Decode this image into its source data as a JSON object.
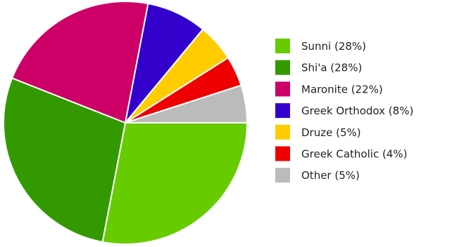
{
  "chart_data": {
    "type": "pie",
    "title": "",
    "slices": [
      {
        "label": "Sunni",
        "value": 28,
        "legend": "Sunni (28%)",
        "color": "#66cc00"
      },
      {
        "label": "Shi'a",
        "value": 28,
        "legend": "Shi'a (28%)",
        "color": "#339900"
      },
      {
        "label": "Maronite",
        "value": 22,
        "legend": "Maronite (22%)",
        "color": "#cc0066"
      },
      {
        "label": "Greek Orthodox",
        "value": 8,
        "legend": "Greek Orthodox (8%)",
        "color": "#3300cc"
      },
      {
        "label": "Druze",
        "value": 5,
        "legend": "Druze (5%)",
        "color": "#ffcc00"
      },
      {
        "label": "Greek Catholic",
        "value": 4,
        "legend": "Greek Catholic (4%)",
        "color": "#ee0000"
      },
      {
        "label": "Other",
        "value": 5,
        "legend": "Other (5%)",
        "color": "#bbbbbb"
      }
    ],
    "start_angle": "3 o'clock, clockwise",
    "legend_position": "right"
  }
}
